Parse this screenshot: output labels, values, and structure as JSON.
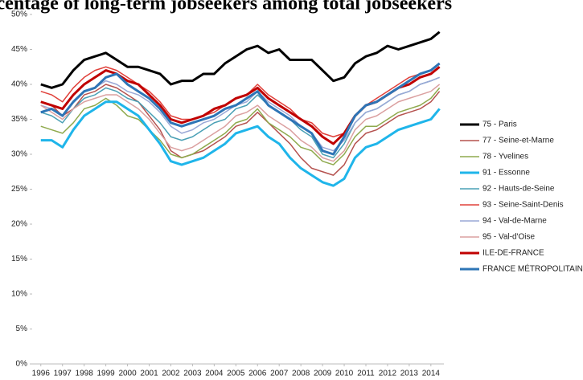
{
  "chart_data": {
    "type": "line",
    "title": "Percentage of long-term jobseekers among total jobseekers",
    "x": [
      1996,
      1996.5,
      1997,
      1997.5,
      1998,
      1998.5,
      1999,
      1999.5,
      2000,
      2000.5,
      2001,
      2001.5,
      2002,
      2002.5,
      2003,
      2003.5,
      2004,
      2004.5,
      2005,
      2005.5,
      2006,
      2006.5,
      2007,
      2007.5,
      2008,
      2008.5,
      2009,
      2009.5,
      2010,
      2010.5,
      2011,
      2011.5,
      2012,
      2012.5,
      2013,
      2013.5,
      2014,
      2014.4
    ],
    "xlim": [
      1995.6,
      2014.6
    ],
    "xticks": [
      1996,
      1997,
      1998,
      1999,
      2000,
      2001,
      2002,
      2003,
      2004,
      2005,
      2006,
      2007,
      2008,
      2009,
      2010,
      2011,
      2012,
      2013,
      2014
    ],
    "ylim": [
      0,
      50
    ],
    "yticks": [
      {
        "value": 0,
        "label": "0%"
      },
      {
        "value": 5,
        "label": "5%"
      },
      {
        "value": 10,
        "label": "10%"
      },
      {
        "value": 15,
        "label": "15%"
      },
      {
        "value": 20,
        "label": "20%"
      },
      {
        "value": 25,
        "label": "25%"
      },
      {
        "value": 30,
        "label": "30%"
      },
      {
        "value": 35,
        "label": "35%"
      },
      {
        "value": 40,
        "label": "40%"
      },
      {
        "value": 45,
        "label": "45%"
      },
      {
        "value": 50,
        "label": "50%"
      }
    ],
    "legend": "right",
    "series": [
      {
        "name": "75 - Paris",
        "color": "#000000",
        "width": 3,
        "values": [
          40,
          39.5,
          40,
          42,
          43.5,
          44,
          44.5,
          43.5,
          42.5,
          42.5,
          42,
          41.5,
          40,
          40.5,
          40.5,
          41.5,
          41.5,
          43,
          44,
          45,
          45.5,
          44.5,
          45,
          43.5,
          43.5,
          43.5,
          42,
          40.5,
          41,
          43,
          44,
          44.5,
          45.5,
          45,
          45.5,
          46,
          46.5,
          47.5
        ]
      },
      {
        "name": "77 - Seine-et-Marne",
        "color": "#b5524f",
        "width": 1.5,
        "values": [
          37.5,
          37,
          35.5,
          36.5,
          38.5,
          39,
          40,
          39.5,
          38.5,
          37.5,
          35.5,
          33.5,
          30.5,
          29.5,
          30,
          30.5,
          31.5,
          32.5,
          34,
          34.5,
          36,
          34.5,
          33,
          31.5,
          29.5,
          28,
          27.5,
          27,
          28.5,
          31.5,
          33,
          33.5,
          34.5,
          35.5,
          36,
          36.5,
          37.5,
          39
        ]
      },
      {
        "name": "78 - Yvelines",
        "color": "#8faa4e",
        "width": 1.5,
        "values": [
          34,
          33.5,
          33,
          34.5,
          36.5,
          37,
          38,
          37,
          35.5,
          35,
          33.5,
          32,
          30,
          29.5,
          30,
          31,
          32,
          33,
          34.5,
          35,
          36.5,
          34.5,
          33.5,
          32.5,
          31,
          30.5,
          29,
          28.5,
          30,
          32.5,
          34,
          34,
          35,
          36,
          36.5,
          37,
          38,
          39.5
        ]
      },
      {
        "name": "91 - Essonne",
        "color": "#1fb5ea",
        "width": 3,
        "values": [
          32,
          32,
          31,
          33.5,
          35.5,
          36.5,
          37.5,
          37.5,
          36.5,
          35.5,
          33.5,
          31.5,
          29,
          28.5,
          29,
          29.5,
          30.5,
          31.5,
          33,
          33.5,
          34,
          32.5,
          31.5,
          29.5,
          28,
          27,
          26,
          25.5,
          26.5,
          29.5,
          31,
          31.5,
          32.5,
          33.5,
          34,
          34.5,
          35,
          36.5
        ]
      },
      {
        "name": "92 - Hauts-de-Seine",
        "color": "#4aa0b5",
        "width": 1.5,
        "values": [
          36,
          35.5,
          34.5,
          36.5,
          38,
          38.5,
          39.5,
          39,
          38,
          37.5,
          36,
          34.5,
          32.5,
          32,
          32.5,
          33.5,
          34.5,
          35,
          36.5,
          37,
          38.5,
          37,
          36,
          35,
          33.5,
          32.5,
          30,
          29.5,
          31.5,
          34.5,
          36,
          36.5,
          37.5,
          38.5,
          39,
          40,
          40.5,
          41
        ]
      },
      {
        "name": "93 - Seine-Saint-Denis",
        "color": "#e0403a",
        "width": 1.5,
        "values": [
          39,
          38.5,
          37.5,
          39.5,
          41,
          42,
          42.5,
          42,
          41,
          40,
          39,
          37.5,
          35.5,
          35,
          35,
          35.5,
          36,
          37,
          38,
          38.5,
          40,
          38.5,
          37.5,
          36.5,
          35,
          34.5,
          33,
          32.5,
          33,
          35.5,
          37,
          38,
          39,
          40,
          41,
          41.5,
          42,
          43
        ]
      },
      {
        "name": "94 - Val-de-Marne",
        "color": "#9aa8d6",
        "width": 1.5,
        "values": [
          37,
          36.5,
          35.5,
          37.5,
          39,
          39.5,
          40.5,
          40,
          39,
          38.5,
          37.5,
          36,
          34,
          33,
          33.5,
          34.5,
          35,
          36,
          37,
          37.5,
          39,
          37.5,
          36.5,
          35.5,
          34,
          33,
          31,
          30.5,
          32,
          34.5,
          36,
          36.5,
          37.5,
          38.5,
          39,
          40,
          40.5,
          41
        ]
      },
      {
        "name": "95 - Val-d'Oise",
        "color": "#dba0a0",
        "width": 1.5,
        "values": [
          37,
          36,
          35,
          36.5,
          37.5,
          38,
          38.5,
          38.5,
          37.5,
          36.5,
          35,
          33,
          31,
          30.5,
          31,
          32,
          33,
          34,
          35.5,
          36,
          37,
          35.5,
          34.5,
          33.5,
          32,
          31,
          29.5,
          29,
          30.5,
          33.5,
          35,
          35.5,
          36.5,
          37.5,
          38,
          38.5,
          39,
          40
        ]
      },
      {
        "name": "ILE-DE-FRANCE",
        "color": "#c00000",
        "width": 3,
        "values": [
          37.5,
          37,
          36.5,
          38.5,
          40,
          41,
          42,
          41.5,
          40.5,
          40,
          38.5,
          37,
          35,
          34.5,
          35,
          35.5,
          36.5,
          37,
          38,
          38.5,
          39.5,
          38,
          37,
          36,
          35,
          34,
          32.5,
          31.5,
          33,
          35.5,
          37,
          37.5,
          38.5,
          39.5,
          40,
          41,
          41.5,
          42.5
        ]
      },
      {
        "name": "FRANCE MÉTROPOLITAINE",
        "color": "#2e75b6",
        "width": 3,
        "values": [
          36,
          36.5,
          35.5,
          37.5,
          39,
          39.5,
          41,
          41.5,
          40,
          39,
          38,
          36.5,
          34.5,
          34,
          34.5,
          35,
          35.5,
          36.5,
          37,
          38,
          39,
          37,
          36,
          35,
          34,
          33,
          30.5,
          30,
          32.5,
          35.5,
          37,
          37.5,
          38.5,
          39.5,
          40.5,
          41.5,
          42,
          43
        ]
      }
    ]
  }
}
